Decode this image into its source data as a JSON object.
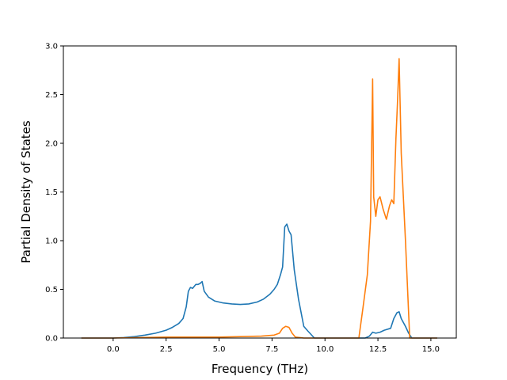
{
  "chart_data": {
    "type": "line",
    "title": "",
    "xlabel": "Frequency (THz)",
    "ylabel": "Partial Density of States",
    "xlim": [
      -2.35,
      16.2
    ],
    "ylim": [
      0,
      3.0
    ],
    "xticks": [
      "0.0",
      "2.5",
      "5.0",
      "7.5",
      "10.0",
      "12.5",
      "15.0"
    ],
    "yticks": [
      "0.0",
      "0.5",
      "1.0",
      "1.5",
      "2.0",
      "2.5",
      "3.0"
    ],
    "grid": false,
    "legend": "none",
    "series": [
      {
        "color": "#1f77b4",
        "x": [
          -1.5,
          0.0,
          0.5,
          1.0,
          1.5,
          2.0,
          2.5,
          2.8,
          3.1,
          3.3,
          3.45,
          3.55,
          3.65,
          3.75,
          3.9,
          4.0,
          4.1,
          4.2,
          4.3,
          4.5,
          4.8,
          5.2,
          5.6,
          6.0,
          6.4,
          6.8,
          7.1,
          7.4,
          7.6,
          7.75,
          7.9,
          8.0,
          8.1,
          8.2,
          8.3,
          8.4,
          8.55,
          8.75,
          9.0,
          9.2,
          9.5,
          10.0,
          11.0,
          11.9,
          12.1,
          12.25,
          12.4,
          12.6,
          12.8,
          13.1,
          13.25,
          13.4,
          13.5,
          13.6,
          13.8,
          13.95,
          14.1,
          15.0,
          15.3
        ],
        "y": [
          0.0,
          0.0,
          0.005,
          0.015,
          0.03,
          0.05,
          0.08,
          0.11,
          0.15,
          0.2,
          0.32,
          0.48,
          0.52,
          0.51,
          0.55,
          0.55,
          0.56,
          0.58,
          0.48,
          0.42,
          0.38,
          0.36,
          0.35,
          0.345,
          0.35,
          0.37,
          0.4,
          0.45,
          0.5,
          0.55,
          0.65,
          0.73,
          1.14,
          1.17,
          1.1,
          1.06,
          0.7,
          0.4,
          0.12,
          0.07,
          0.0,
          0.0,
          0.0,
          0.0,
          0.02,
          0.06,
          0.05,
          0.06,
          0.08,
          0.1,
          0.2,
          0.26,
          0.27,
          0.2,
          0.12,
          0.05,
          0.0,
          0.0,
          0.0
        ]
      },
      {
        "color": "#ff7f0e",
        "x": [
          -1.5,
          0.0,
          2.5,
          5.0,
          7.0,
          7.6,
          7.85,
          8.0,
          8.15,
          8.3,
          8.45,
          8.6,
          9.0,
          10.0,
          11.0,
          11.6,
          11.8,
          12.0,
          12.15,
          12.25,
          12.3,
          12.4,
          12.5,
          12.6,
          12.75,
          12.9,
          13.05,
          13.15,
          13.25,
          13.35,
          13.42,
          13.5,
          13.6,
          13.8,
          14.0,
          14.5,
          15.3
        ],
        "y": [
          0.0,
          0.0,
          0.01,
          0.01,
          0.02,
          0.03,
          0.05,
          0.1,
          0.12,
          0.11,
          0.05,
          0.01,
          0.0,
          0.0,
          0.0,
          0.0,
          0.32,
          0.65,
          1.2,
          2.66,
          1.45,
          1.25,
          1.42,
          1.45,
          1.32,
          1.22,
          1.36,
          1.42,
          1.38,
          2.05,
          2.4,
          2.87,
          1.9,
          1.0,
          0.0,
          0.0,
          0.0
        ]
      }
    ]
  }
}
